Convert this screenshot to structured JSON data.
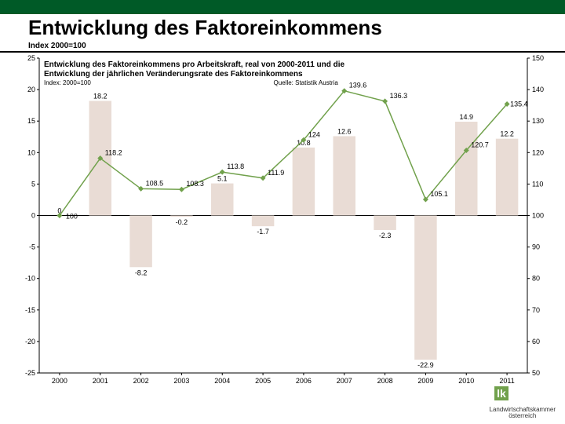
{
  "header": {
    "title": "Entwicklung des Faktoreinkommens",
    "subtitle": "Index 2000=100"
  },
  "chart": {
    "type": "combo-bar-line",
    "inner_title_line1": "Entwicklung des Faktoreinkommens pro Arbeitskraft, real von 2000-2011 und die",
    "inner_title_line2": "Entwicklung der jährlichen Veränderungsrate des Faktoreinkommens",
    "inner_sub_left": "Index: 2000=100",
    "inner_sub_right": "Quelle: Statistik Austria",
    "categories": [
      "2000",
      "2001",
      "2002",
      "2003",
      "2004",
      "2005",
      "2006",
      "2007",
      "2008",
      "2009",
      "2010",
      "2011"
    ],
    "left_axis": {
      "min": -25,
      "max": 25,
      "step": 5
    },
    "right_axis": {
      "min": 50,
      "max": 150,
      "step": 10
    },
    "bars": {
      "values": [
        0,
        18.2,
        -8.2,
        -0.2,
        5.1,
        -1.7,
        10.8,
        12.6,
        -2.3,
        -22.9,
        14.9,
        12.2
      ],
      "color": "#e9dcd5",
      "label_color": "#000000",
      "label_fontsize": 9
    },
    "line_index": {
      "values": [
        100,
        118.2,
        108.5,
        108.3,
        113.8,
        111.9,
        124,
        139.6,
        136.3,
        105.1,
        120.7,
        135.4
      ],
      "color": "#71a14c",
      "marker": "diamond",
      "label_color": "#000000",
      "label_fontsize": 9
    },
    "background": "#ffffff",
    "axis_color": "#000000",
    "tick_fontsize": 9
  },
  "footer": {
    "logo_initials": "lk",
    "logo_text": "Landwirtschaftskammer",
    "logo_sub": "österreich",
    "brand_color": "#71a14c"
  }
}
